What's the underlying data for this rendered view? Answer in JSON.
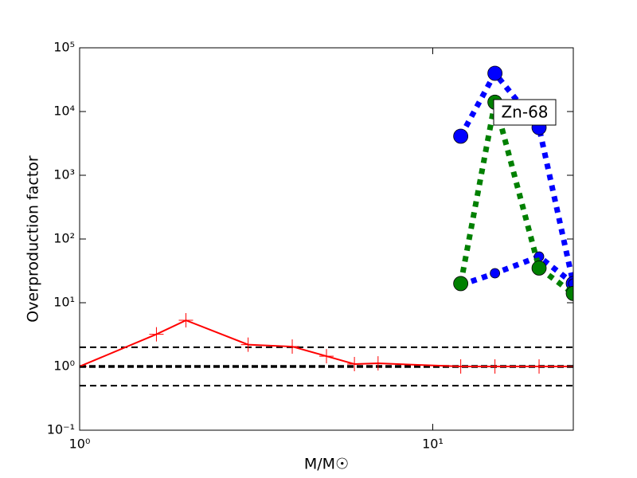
{
  "chart_data": {
    "type": "line",
    "x_label": "M/M☉",
    "y_label": "Overproduction factor",
    "annotation": "Zn-68",
    "x_scale": "log",
    "y_scale": "log",
    "xlim": [
      1,
      25
    ],
    "ylim": [
      0.1,
      100000
    ],
    "xticks": [
      {
        "value": 1,
        "label": "10⁰"
      },
      {
        "value": 10,
        "label": "10¹"
      }
    ],
    "yticks": [
      {
        "value": 0.1,
        "label": "10⁻¹"
      },
      {
        "value": 1,
        "label": "10⁰"
      },
      {
        "value": 10,
        "label": "10¹"
      },
      {
        "value": 100,
        "label": "10²"
      },
      {
        "value": 1000,
        "label": "10³"
      },
      {
        "value": 10000,
        "label": "10⁴"
      },
      {
        "value": 100000,
        "label": "10⁵"
      }
    ],
    "reference_lines": [
      2,
      1,
      0.5
    ],
    "series": [
      {
        "color": "#ff0000",
        "line_style": "solid",
        "marker": "plus",
        "x": [
          1,
          1.65,
          2,
          3,
          4,
          5,
          6,
          7,
          12,
          15,
          20,
          25
        ],
        "values": [
          1.0,
          3.2,
          5.3,
          2.2,
          2.05,
          1.45,
          1.09,
          1.12,
          1.0,
          1.0,
          1.0,
          1.0
        ]
      },
      {
        "color": "#0000ff",
        "line_style": "dotted",
        "marker": "circle-large",
        "x": [
          12,
          15,
          20,
          25
        ],
        "values": [
          4100,
          39800,
          5600,
          20
        ]
      },
      {
        "color": "#0000ff",
        "line_style": "dotted",
        "marker": "circle-small",
        "x": [
          12,
          15,
          20,
          25
        ],
        "values": [
          19,
          29,
          53,
          20
        ]
      },
      {
        "color": "#008000",
        "line_style": "dotted",
        "marker": "circle-large",
        "x": [
          12,
          15,
          20,
          25
        ],
        "values": [
          20,
          14000,
          35,
          14
        ]
      }
    ]
  }
}
